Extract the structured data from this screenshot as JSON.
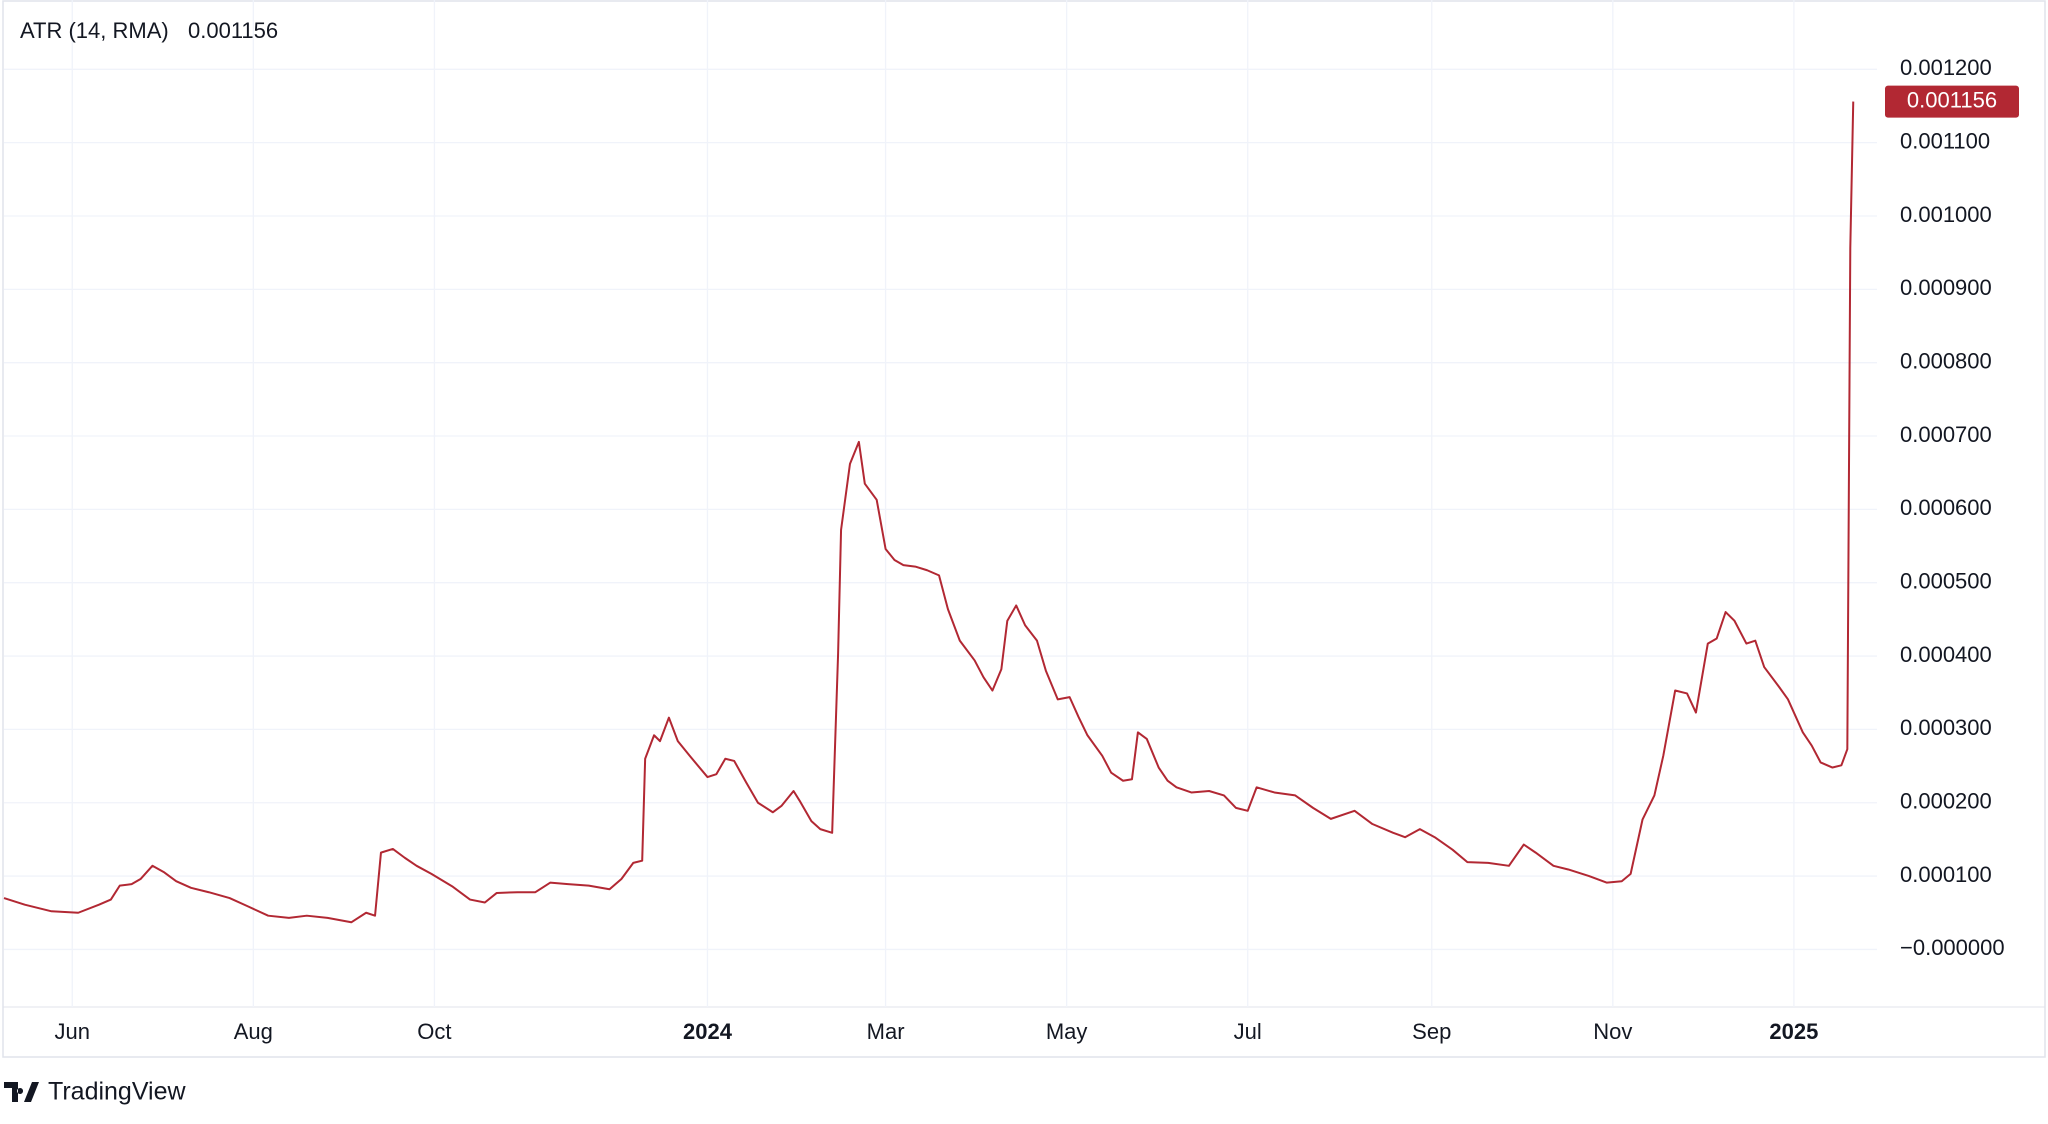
{
  "chart_data": {
    "type": "line",
    "legend_title": "ATR (14, RMA)",
    "last_value_label": "0.001156",
    "series": [
      {
        "name": "ATR (14, RMA)",
        "color": "#b22833",
        "values": [
          7e-05,
          6.1e-05,
          5.2e-05,
          5e-05,
          6.1e-05,
          6.8e-05,
          8.7e-05,
          8.9e-05,
          9.6e-05,
          0.000114,
          0.000105,
          9.3e-05,
          8.4e-05,
          7.8e-05,
          7e-05,
          5.9e-05,
          4.6e-05,
          4.3e-05,
          4.6e-05,
          4.3e-05,
          3.7e-05,
          5e-05,
          4.6e-05,
          0.000132,
          0.000137,
          0.000125,
          0.000114,
          0.000103,
          8.6e-05,
          6.8e-05,
          6.4e-05,
          7.7e-05,
          7.8e-05,
          7.8e-05,
          9.1e-05,
          8.9e-05,
          8.7e-05,
          8.2e-05,
          9.6e-05,
          0.000118,
          0.000121,
          0.00026,
          0.000292,
          0.000284,
          0.000316,
          0.000284,
          0.000264,
          0.000235,
          0.000239,
          0.00026,
          0.000257,
          0.000228,
          0.0002,
          0.000187,
          0.000196,
          0.000216,
          0.000203,
          0.000175,
          0.000164,
          0.000159,
          0.000403,
          0.000572,
          0.000662,
          0.000692,
          0.000635,
          0.000613,
          0.000546,
          0.000531,
          0.000524,
          0.000522,
          0.000517,
          0.00051,
          0.000464,
          0.000421,
          0.000394,
          0.000371,
          0.000353,
          0.000382,
          0.000448,
          0.000469,
          0.000442,
          0.000421,
          0.00038,
          0.000341,
          0.000344,
          0.000317,
          0.000292,
          0.000264,
          0.000241,
          0.00023,
          0.000232,
          0.000296,
          0.000287,
          0.000248,
          0.00023,
          0.000221,
          0.000214,
          0.000216,
          0.00021,
          0.000193,
          0.000189,
          0.000221,
          0.000214,
          0.00021,
          0.000193,
          0.000178,
          0.000189,
          0.000171,
          0.000159,
          0.000153,
          0.000164,
          0.000153,
          0.000136,
          0.000119,
          0.000118,
          0.000114,
          0.000143,
          0.000132,
          0.000114,
          0.000109,
          0.0001,
          9.1e-05,
          9.3e-05,
          0.000103,
          0.000177,
          0.00021,
          0.000264,
          0.000353,
          0.000349,
          0.000323,
          0.000417,
          0.000424,
          0.00046,
          0.000448,
          0.000417,
          0.000421,
          0.000385,
          0.000358,
          0.000341,
          0.000296,
          0.000278,
          0.000255,
          0.000248,
          0.000251,
          0.000273,
          0.000956,
          0.001156
        ]
      }
    ],
    "x": [
      0,
      7,
      16,
      25,
      32,
      36,
      39,
      43,
      46,
      50,
      54,
      58,
      63,
      69,
      76,
      82,
      89,
      96,
      102,
      109,
      117,
      122,
      125,
      127,
      131,
      135,
      139,
      144,
      151,
      157,
      162,
      166,
      173,
      179,
      184,
      190,
      197,
      204,
      208,
      212,
      215,
      216,
      219,
      221,
      224,
      227,
      231,
      237,
      240,
      243,
      246,
      250,
      254,
      259,
      262,
      266,
      268,
      272,
      275,
      279,
      281,
      282,
      285,
      288,
      290,
      294,
      297,
      300,
      303,
      307,
      311,
      315,
      318,
      322,
      327,
      330,
      333,
      336,
      338,
      341,
      344,
      348,
      351,
      355,
      359,
      362,
      365,
      370,
      373,
      377,
      380,
      382,
      385,
      389,
      392,
      395,
      400,
      406,
      411,
      415,
      419,
      422,
      428,
      435,
      441,
      447,
      455,
      461,
      468,
      472,
      477,
      482,
      488,
      493,
      500,
      507,
      512,
      516,
      522,
      527,
      534,
      540,
      545,
      548,
      552,
      556,
      559,
      563,
      567,
      570,
      574,
      577,
      580,
      583,
      587,
      590,
      593,
      598,
      601,
      606,
      609,
      612,
      616,
      619,
      621,
      622,
      623
    ],
    "xlim": [
      0,
      631
    ],
    "xticks": [
      {
        "value": 23,
        "label": "Jun"
      },
      {
        "value": 84,
        "label": "Aug"
      },
      {
        "value": 145,
        "label": "Oct"
      },
      {
        "value": 237,
        "label": "2024"
      },
      {
        "value": 297,
        "label": "Mar"
      },
      {
        "value": 358,
        "label": "May"
      },
      {
        "value": 419,
        "label": "Jul"
      },
      {
        "value": 481,
        "label": "Sep"
      },
      {
        "value": 542,
        "label": "Nov"
      },
      {
        "value": 603,
        "label": "2025"
      }
    ],
    "ylim": [
      -7.85e-05,
      0.0012945
    ],
    "yticks": [
      {
        "value": 0.0012,
        "label": "0.001200"
      },
      {
        "value": 0.0011,
        "label": "0.001100"
      },
      {
        "value": 0.001,
        "label": "0.001000"
      },
      {
        "value": 0.0009,
        "label": "0.000900"
      },
      {
        "value": 0.0008,
        "label": "0.000800"
      },
      {
        "value": 0.0007,
        "label": "0.000700"
      },
      {
        "value": 0.0006,
        "label": "0.000600"
      },
      {
        "value": 0.0005,
        "label": "0.000500"
      },
      {
        "value": 0.0004,
        "label": "0.000400"
      },
      {
        "value": 0.0003,
        "label": "0.000300"
      },
      {
        "value": 0.0002,
        "label": "0.000200"
      },
      {
        "value": 0.0001,
        "label": "0.000100"
      },
      {
        "value": 0,
        "label": "−0.000000"
      }
    ],
    "grid": true
  },
  "brand": "TradingView"
}
